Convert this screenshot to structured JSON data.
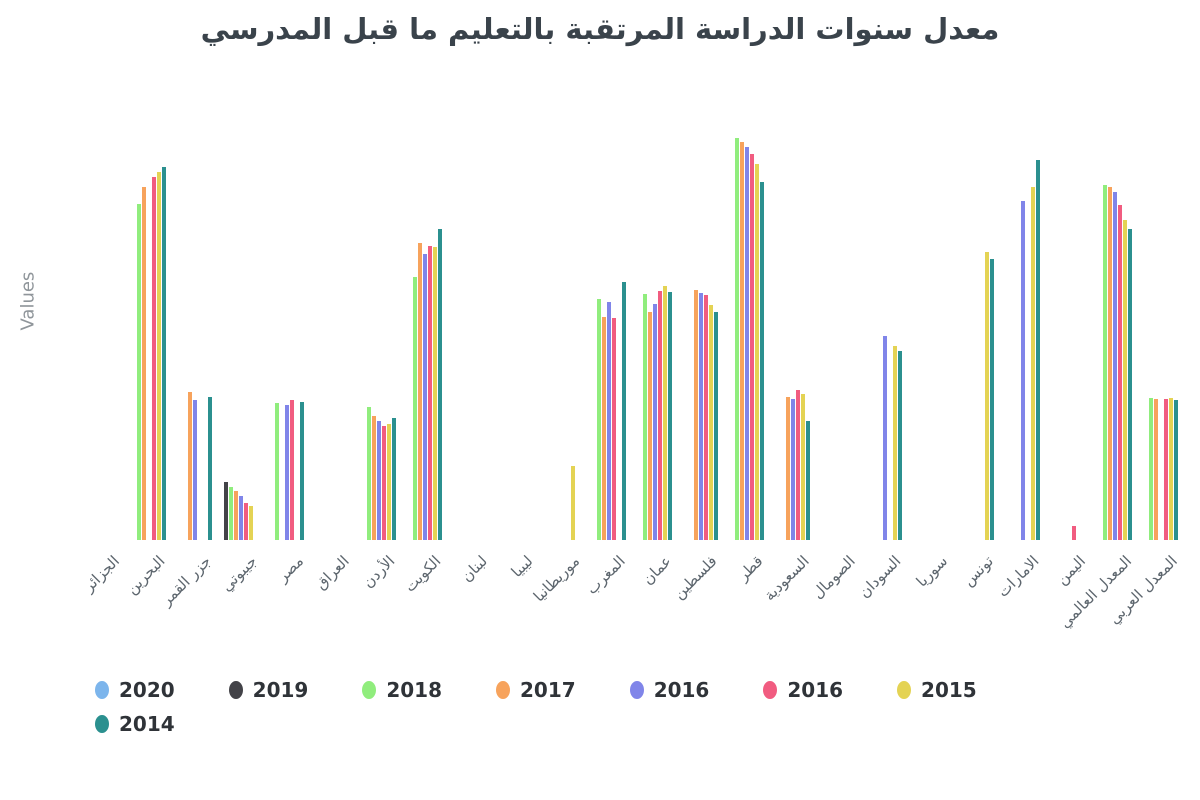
{
  "title": "معدل سنوات الدراسة المرتقبة بالتعليم ما قبل المدرسي",
  "y_axis": {
    "label": "Values"
  },
  "legend": {
    "position": "bottom"
  },
  "chart_data": {
    "type": "bar",
    "title": "معدل سنوات الدراسة المرتقبة بالتعليم ما قبل المدرسي",
    "xlabel": "",
    "ylabel": "Values",
    "ylim": [
      0,
      4
    ],
    "grid": false,
    "legend_position": "bottom",
    "categories": [
      "الجزائر",
      "البحرين",
      "جزر القمر",
      "جيبوتي",
      "مصر",
      "العراق",
      "الأردن",
      "الكويت",
      "لبنان",
      "ليبيا",
      "موريطانيا",
      "المغرب",
      "عمان",
      "فلسطين",
      "قطر",
      "السعودية",
      "الصومال",
      "السودان",
      "سوريا",
      "تونس",
      "الامارات",
      "اليمن",
      "المعدل العالمي",
      "المعدل العربي"
    ],
    "series": [
      {
        "name": "2020",
        "color": "#7cb5ec",
        "values": [
          null,
          null,
          null,
          null,
          null,
          null,
          null,
          null,
          null,
          null,
          null,
          null,
          null,
          null,
          null,
          null,
          null,
          null,
          null,
          null,
          null,
          null,
          null,
          null
        ]
      },
      {
        "name": "2019",
        "color": "#434348",
        "values": [
          null,
          null,
          null,
          0.55,
          null,
          null,
          null,
          null,
          null,
          null,
          null,
          null,
          null,
          null,
          null,
          null,
          null,
          null,
          null,
          null,
          null,
          null,
          null,
          null
        ]
      },
      {
        "name": "2018",
        "color": "#90ed7d",
        "values": [
          null,
          3.2,
          null,
          0.5,
          1.3,
          null,
          1.27,
          2.5,
          null,
          null,
          null,
          2.3,
          2.34,
          null,
          3.83,
          null,
          null,
          null,
          null,
          null,
          null,
          null,
          3.38,
          1.35
        ]
      },
      {
        "name": "2017",
        "color": "#f7a35c",
        "values": [
          null,
          3.36,
          1.41,
          0.47,
          null,
          null,
          1.18,
          2.83,
          null,
          null,
          null,
          2.12,
          2.17,
          2.38,
          3.79,
          1.36,
          null,
          null,
          null,
          null,
          null,
          null,
          3.36,
          1.34
        ]
      },
      {
        "name": "2016",
        "color": "#8085e9",
        "values": [
          null,
          null,
          1.33,
          0.42,
          1.29,
          null,
          1.13,
          2.72,
          null,
          null,
          null,
          2.27,
          2.25,
          2.35,
          3.74,
          1.34,
          null,
          1.94,
          null,
          null,
          3.23,
          null,
          3.31,
          null
        ]
      },
      {
        "name": "2016",
        "color": "#f15c80",
        "values": [
          null,
          3.46,
          null,
          0.35,
          1.33,
          null,
          1.09,
          2.8,
          null,
          null,
          null,
          2.11,
          2.37,
          2.33,
          3.68,
          1.43,
          null,
          null,
          null,
          null,
          null,
          0.13,
          3.19,
          1.34
        ]
      },
      {
        "name": "2015",
        "color": "#e4d354",
        "values": [
          null,
          3.5,
          null,
          0.32,
          null,
          null,
          1.1,
          2.79,
          null,
          null,
          0.7,
          null,
          2.42,
          2.24,
          3.58,
          1.39,
          null,
          1.85,
          null,
          2.74,
          3.36,
          null,
          3.05,
          1.35
        ]
      },
      {
        "name": "2014",
        "color": "#2b908f",
        "values": [
          null,
          3.55,
          1.36,
          null,
          1.31,
          null,
          1.16,
          2.96,
          null,
          null,
          null,
          2.46,
          2.36,
          2.17,
          3.41,
          1.13,
          null,
          1.8,
          null,
          2.68,
          3.62,
          null,
          2.96,
          1.33
        ]
      }
    ]
  }
}
